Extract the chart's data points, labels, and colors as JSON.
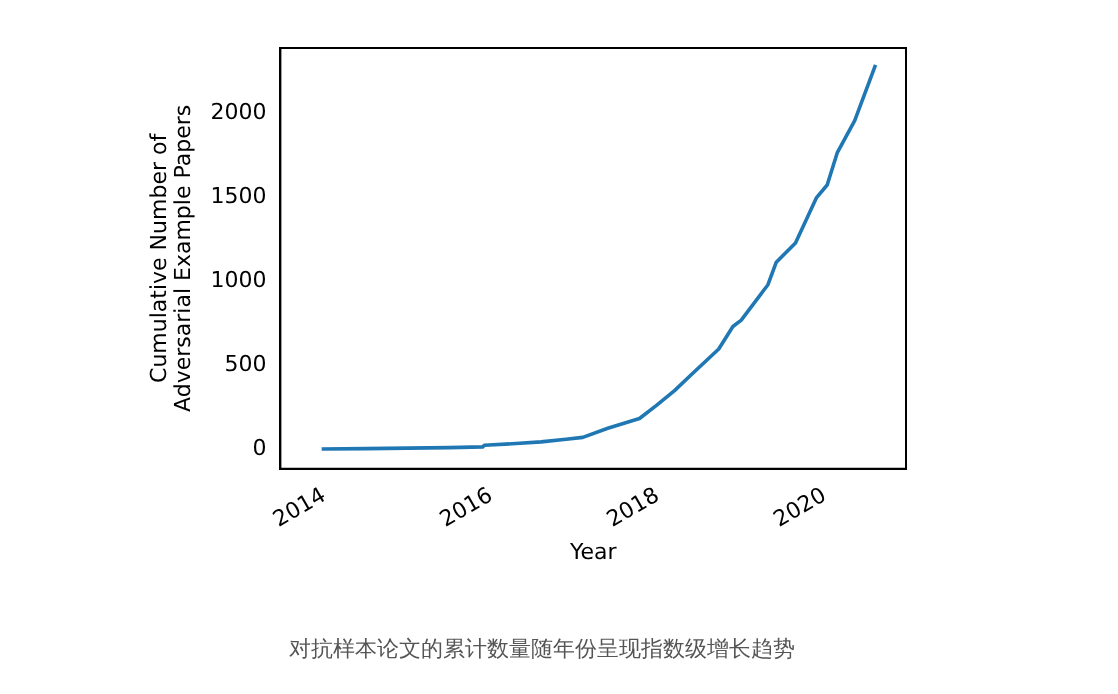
{
  "chart_data": {
    "type": "line",
    "xlabel": "Year",
    "ylabel": "Cumulative Number of\nAdversarial Example Papers",
    "annotations": [
      "对抗样本论文的累计数量随年份呈现指数级增长趋势"
    ],
    "x": [
      2013.97,
      2014.5,
      2015.0,
      2015.5,
      2015.9,
      2015.92,
      2016.3,
      2016.6,
      2016.9,
      2017.1,
      2017.4,
      2017.78,
      2017.98,
      2018.2,
      2018.4,
      2018.73,
      2018.9,
      2019.0,
      2019.32,
      2019.42,
      2019.65,
      2019.9,
      2020.03,
      2020.15,
      2020.36,
      2020.61
    ],
    "series": [
      {
        "color": "#1f77b4",
        "values": [
          3,
          5,
          8,
          11,
          15,
          25,
          35,
          45,
          61,
          72,
          126,
          184,
          261,
          350,
          445,
          598,
          732,
          770,
          981,
          1115,
          1230,
          1498,
          1575,
          1766,
          1958,
          2291
        ]
      }
    ],
    "xlim": [
      2013.475,
      2020.975
    ],
    "xticks": [
      2014,
      2016,
      2018,
      2020
    ],
    "ylim": [
      -115,
      2391
    ],
    "yticks": [
      0,
      500,
      1000,
      1500,
      2000
    ],
    "grid": false,
    "legend": false,
    "marker": "none",
    "line_style": "solid"
  }
}
